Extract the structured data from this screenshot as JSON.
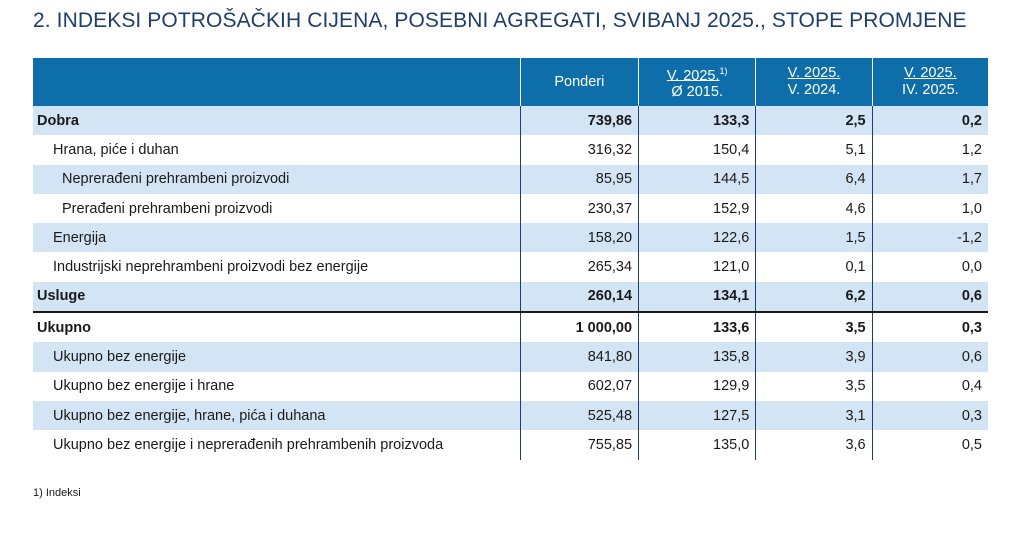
{
  "title": "2. INDEKSI POTROŠAČKIH CIJENA, POSEBNI AGREGATI, SVIBANJ 2025., STOPE PROMJENE",
  "headers": {
    "col0": "",
    "col1": "Ponderi",
    "col2_top": "V. 2025.",
    "col2_sup": "1)",
    "col2_bottom": "Ø 2015.",
    "col3_top": "V. 2025.",
    "col3_bottom": "V. 2024.",
    "col4_top": "V. 2025.",
    "col4_bottom": "IV. 2025."
  },
  "rows": [
    {
      "label": "Dobra",
      "ponderi": "739,86",
      "idx2015": "133,3",
      "yoy": "2,5",
      "mom": "0,2"
    },
    {
      "label": "Hrana, piće i duhan",
      "ponderi": "316,32",
      "idx2015": "150,4",
      "yoy": "5,1",
      "mom": "1,2"
    },
    {
      "label": "Neprerađeni prehrambeni proizvodi",
      "ponderi": "85,95",
      "idx2015": "144,5",
      "yoy": "6,4",
      "mom": "1,7"
    },
    {
      "label": "Prerađeni prehrambeni proizvodi",
      "ponderi": "230,37",
      "idx2015": "152,9",
      "yoy": "4,6",
      "mom": "1,0"
    },
    {
      "label": "Energija",
      "ponderi": "158,20",
      "idx2015": "122,6",
      "yoy": "1,5",
      "mom": "-1,2"
    },
    {
      "label": "Industrijski neprehrambeni proizvodi bez energije",
      "ponderi": "265,34",
      "idx2015": "121,0",
      "yoy": "0,1",
      "mom": "0,0"
    },
    {
      "label": "Usluge",
      "ponderi": "260,14",
      "idx2015": "134,1",
      "yoy": "6,2",
      "mom": "0,6"
    },
    {
      "label": "Ukupno",
      "ponderi": "1 000,00",
      "idx2015": "133,6",
      "yoy": "3,5",
      "mom": "0,3"
    },
    {
      "label": "Ukupno bez energije",
      "ponderi": "841,80",
      "idx2015": "135,8",
      "yoy": "3,9",
      "mom": "0,6"
    },
    {
      "label": "Ukupno bez energije i hrane",
      "ponderi": "602,07",
      "idx2015": "129,9",
      "yoy": "3,5",
      "mom": "0,4"
    },
    {
      "label": "Ukupno bez energije, hrane, pića i duhana",
      "ponderi": "525,48",
      "idx2015": "127,5",
      "yoy": "3,1",
      "mom": "0,3"
    },
    {
      "label": "Ukupno bez energije i neprerađenih prehrambenih proizvoda",
      "ponderi": "755,85",
      "idx2015": "135,0",
      "yoy": "3,6",
      "mom": "0,5"
    }
  ],
  "footnote": "1) Indeksi"
}
